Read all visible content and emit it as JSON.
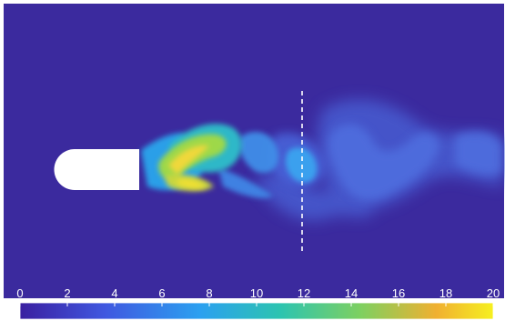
{
  "colorbar": {
    "ticks": [
      "0",
      "2",
      "4",
      "6",
      "8",
      "10",
      "12",
      "14",
      "16",
      "18",
      "20"
    ],
    "range": [
      0,
      20
    ],
    "colormap": "viridis-like",
    "colors": [
      "#3a1fa0",
      "#4058e0",
      "#2ba0f0",
      "#2cc4b0",
      "#7ed060",
      "#f0b030",
      "#f6f020"
    ]
  },
  "field": {
    "background_color": "#3b2a9e",
    "body_color": "#ffffff",
    "probe_line": "dashed-vertical"
  }
}
